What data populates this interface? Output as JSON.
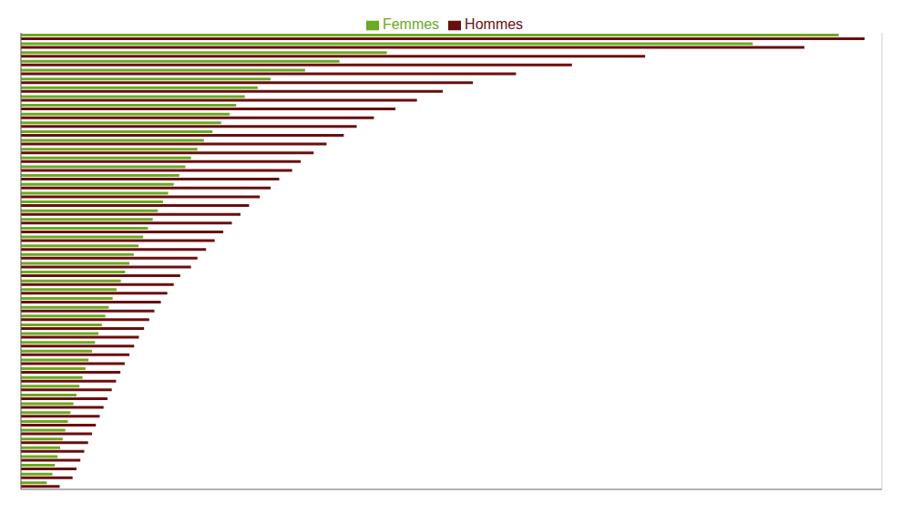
{
  "chart_data": {
    "type": "bar",
    "orientation": "horizontal",
    "categories": [
      null,
      null,
      null,
      null,
      null,
      null,
      null,
      null,
      null,
      null,
      null,
      null,
      null,
      null,
      null,
      null,
      null,
      null,
      null,
      null,
      null,
      null,
      null,
      null,
      null,
      null,
      null,
      null,
      null,
      null,
      null,
      null,
      null,
      null,
      null,
      null,
      null,
      null,
      null,
      null,
      null,
      null,
      null,
      null,
      null,
      null,
      null,
      null,
      null,
      null,
      null,
      null
    ],
    "series": [
      {
        "name": "Femmes",
        "color": "#6aaa1e",
        "values": [
          19.0,
          17.0,
          8.5,
          7.4,
          6.6,
          5.8,
          5.5,
          5.2,
          5.0,
          4.85,
          4.65,
          4.45,
          4.25,
          4.1,
          3.95,
          3.82,
          3.68,
          3.55,
          3.42,
          3.3,
          3.18,
          3.06,
          2.95,
          2.84,
          2.73,
          2.62,
          2.52,
          2.42,
          2.32,
          2.22,
          2.13,
          2.04,
          1.96,
          1.88,
          1.8,
          1.72,
          1.65,
          1.57,
          1.5,
          1.43,
          1.36,
          1.29,
          1.22,
          1.15,
          1.09,
          1.03,
          0.97,
          0.91,
          0.85,
          0.79,
          0.73,
          0.6
        ]
      },
      {
        "name": "Hommes",
        "color": "#6b0e0e",
        "values": [
          19.6,
          18.2,
          14.5,
          12.8,
          11.5,
          10.5,
          9.8,
          9.2,
          8.7,
          8.2,
          7.8,
          7.5,
          7.1,
          6.8,
          6.5,
          6.3,
          6.0,
          5.8,
          5.55,
          5.3,
          5.1,
          4.9,
          4.7,
          4.5,
          4.3,
          4.1,
          3.95,
          3.7,
          3.55,
          3.4,
          3.25,
          3.1,
          2.98,
          2.86,
          2.74,
          2.63,
          2.52,
          2.41,
          2.31,
          2.21,
          2.11,
          2.01,
          1.92,
          1.83,
          1.74,
          1.65,
          1.56,
          1.47,
          1.38,
          1.29,
          1.2,
          0.9
        ]
      }
    ],
    "xlim": [
      0,
      20
    ],
    "xticks": [
      0,
      4,
      8,
      12,
      16,
      20
    ],
    "grid": true,
    "tick_labels": false,
    "legend": "top"
  }
}
